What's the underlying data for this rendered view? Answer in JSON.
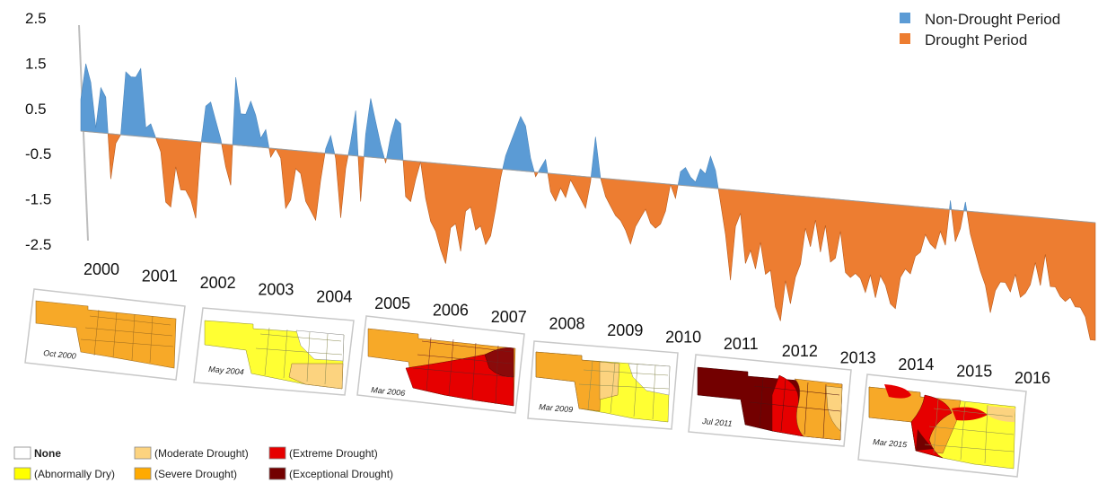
{
  "chart_data": {
    "type": "area",
    "x_start_year": 2000,
    "x_end_year": 2016,
    "ylim": [
      -2.5,
      2.5
    ],
    "ytick_labels": [
      "2.5",
      "1.5",
      "0.5",
      "-0.5",
      "-1.5",
      "-2.5"
    ],
    "year_labels": [
      "2000",
      "2001",
      "2002",
      "2003",
      "2004",
      "2005",
      "2006",
      "2007",
      "2008",
      "2009",
      "2010",
      "2011",
      "2012",
      "2013",
      "2014",
      "2015",
      "2016"
    ],
    "series": [
      {
        "name": "Non-Drought Period",
        "color": "#5b9bd5"
      },
      {
        "name": "Drought Period",
        "color": "#ed7d31"
      }
    ],
    "monthly_index": [
      0.7,
      1.5,
      1.1,
      0.1,
      1.0,
      0.8,
      -1.0,
      -0.2,
      0.0,
      1.4,
      1.3,
      1.3,
      1.5,
      0.2,
      0.3,
      0.0,
      -0.3,
      -1.4,
      -1.5,
      -0.6,
      -1.1,
      -1.1,
      -1.3,
      -1.7,
      -0.1,
      0.8,
      0.9,
      0.5,
      0.1,
      -0.5,
      -0.9,
      1.5,
      0.7,
      0.7,
      1.0,
      0.7,
      0.2,
      0.4,
      -0.2,
      0.0,
      -0.2,
      -1.3,
      -1.1,
      -0.4,
      -0.5,
      -1.1,
      -1.3,
      -1.5,
      -0.6,
      0.1,
      0.4,
      -0.1,
      -1.4,
      -0.3,
      0.3,
      1.0,
      -1.0,
      0.5,
      1.3,
      0.8,
      0.3,
      -0.1,
      0.5,
      0.9,
      0.8,
      -0.8,
      -0.9,
      -0.4,
      0.0,
      -0.8,
      -1.3,
      -1.5,
      -1.9,
      -2.2,
      -1.4,
      -1.3,
      -1.9,
      -1.0,
      -0.9,
      -1.4,
      -1.3,
      -1.7,
      -1.5,
      -0.9,
      -0.2,
      0.3,
      0.6,
      0.9,
      1.2,
      1.0,
      0.3,
      -0.1,
      0.1,
      0.3,
      -0.4,
      -0.6,
      -0.3,
      -0.5,
      -0.1,
      -0.3,
      -0.5,
      -0.7,
      -0.1,
      0.9,
      0.0,
      -0.4,
      -0.6,
      -0.8,
      -0.9,
      -1.1,
      -1.4,
      -1.0,
      -0.8,
      -0.6,
      -0.9,
      -1.0,
      -0.9,
      -0.6,
      0.0,
      -0.3,
      0.3,
      0.4,
      0.2,
      0.1,
      0.4,
      0.3,
      0.7,
      0.4,
      -0.3,
      -1.0,
      -2.0,
      -0.8,
      -0.5,
      -1.6,
      -1.3,
      -1.7,
      -1.1,
      -1.8,
      -1.7,
      -2.5,
      -2.8,
      -1.9,
      -2.4,
      -1.8,
      -1.5,
      -0.7,
      -1.1,
      -0.5,
      -1.2,
      -0.6,
      -1.4,
      -1.3,
      -0.7,
      -1.6,
      -1.7,
      -1.6,
      -1.7,
      -2.0,
      -1.6,
      -2.1,
      -1.6,
      -1.8,
      -2.2,
      -2.3,
      -1.6,
      -1.4,
      -1.5,
      -1.1,
      -1.0,
      -0.6,
      -0.8,
      -0.9,
      -0.5,
      -0.8,
      0.2,
      -0.7,
      -0.4,
      0.2,
      -0.5,
      -0.9,
      -1.3,
      -1.6,
      -2.2,
      -1.7,
      -1.5,
      -1.5,
      -1.7,
      -1.3,
      -1.8,
      -1.7,
      -1.5,
      -1.0,
      -1.5,
      -0.8,
      -1.5,
      -1.5,
      -1.7,
      -1.8,
      -1.7,
      -1.9,
      -1.9,
      -2.1,
      -2.6,
      -2.6
    ]
  },
  "legend": {
    "non_drought": "Non-Drought Period",
    "drought": "Drought Period"
  },
  "maps": [
    {
      "caption": "Oct 2000"
    },
    {
      "caption": "May 2004"
    },
    {
      "caption": "Mar 2006"
    },
    {
      "caption": "Mar 2009"
    },
    {
      "caption": "Jul 2011"
    },
    {
      "caption": "Mar 2015"
    }
  ],
  "drought_categories": [
    {
      "label": "None",
      "color": "#ffffff"
    },
    {
      "label": "(Abnormally Dry)",
      "color": "#ffff00"
    },
    {
      "label": "(Moderate Drought)",
      "color": "#fcd37f"
    },
    {
      "label": "(Severe Drought)",
      "color": "#ffaa00"
    },
    {
      "label": "(Extreme Drought)",
      "color": "#e60000"
    },
    {
      "label": "(Exceptional Drought)",
      "color": "#730000"
    }
  ]
}
